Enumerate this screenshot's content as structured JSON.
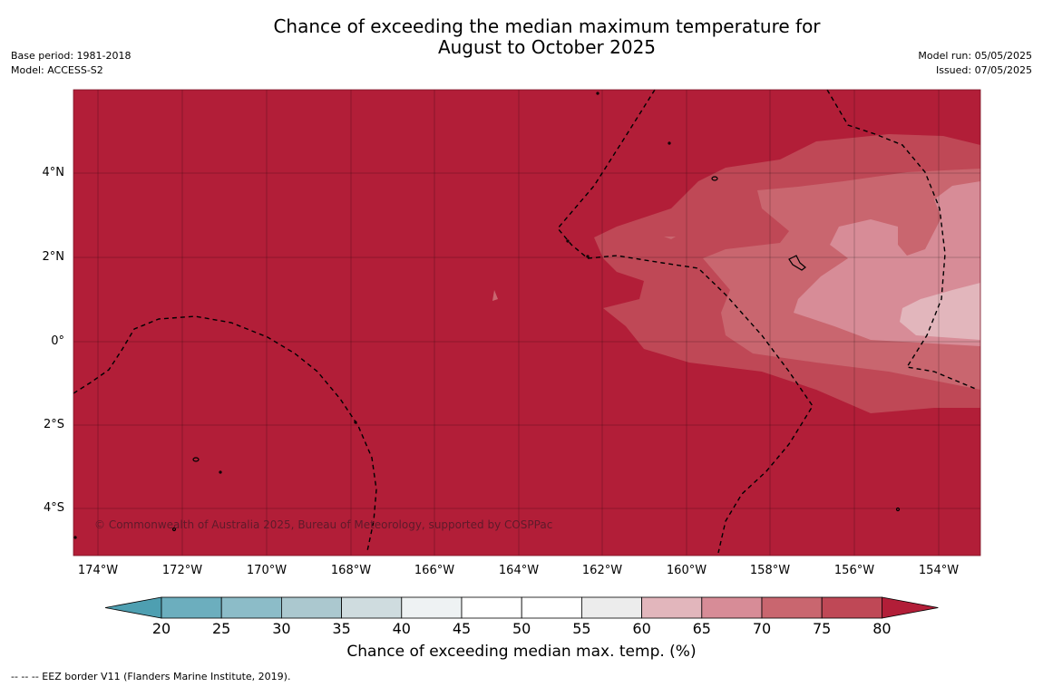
{
  "title": {
    "line1": "Chance of exceeding the median maximum temperature for",
    "line2": "August to October 2025"
  },
  "meta_left": {
    "base_period": "Base period: 1981-2018",
    "model": "Model: ACCESS-S2"
  },
  "meta_right": {
    "model_run": "Model run: 05/05/2025",
    "issued": "Issued: 07/05/2025"
  },
  "map": {
    "background_color": "#b21e38",
    "latitude_labels": [
      "4°N",
      "2°N",
      "0°",
      "2°S",
      "4°S"
    ],
    "longitude_labels": [
      "174°W",
      "172°W",
      "170°W",
      "168°W",
      "166°W",
      "164°W",
      "162°W",
      "160°W",
      "158°W",
      "156°W",
      "154°W"
    ],
    "copyright": "© Commonwealth of Australia 2025, Bureau of Meteorology, supported by COSPPac"
  },
  "colorbar": {
    "title": "Chance of exceeding median max. temp. (%)",
    "tick_labels": [
      "20",
      "25",
      "30",
      "35",
      "40",
      "45",
      "50",
      "55",
      "60",
      "65",
      "70",
      "75",
      "80"
    ],
    "colors": [
      "#4e9fb1",
      "#6caebe",
      "#8cbcc8",
      "#abc8cf",
      "#cfdcdf",
      "#eef2f3",
      "#ffffff",
      "#ffffff",
      "#ececec",
      "#e2b6bc",
      "#d78c97",
      "#c9666f",
      "#bf4856",
      "#b21e38"
    ]
  },
  "footnote": "--  --  -- EEZ border V11 (Flanders Marine Institute, 2019)."
}
